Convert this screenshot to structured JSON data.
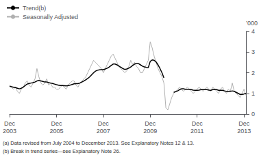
{
  "chart_data": {
    "type": "line",
    "ylabel": "’000",
    "annotations": [
      "(a) Data revised from July 2004 to December 2013. See Explanatory Notes 12 & 13.",
      "(b) Break in trend series—see Explanatory Note 26."
    ],
    "categories": [
      "Dec\n2003",
      null,
      null,
      null,
      null,
      null,
      null,
      null,
      null,
      null,
      null,
      null,
      null,
      null,
      null,
      null,
      null,
      null,
      null,
      null,
      null,
      null,
      null,
      null,
      "Dec\n2005",
      null,
      null,
      null,
      null,
      null,
      null,
      null,
      null,
      null,
      null,
      null,
      null,
      null,
      null,
      null,
      null,
      null,
      null,
      null,
      null,
      null,
      null,
      null,
      "Dec\n2007",
      null,
      null,
      null,
      null,
      null,
      null,
      null,
      null,
      null,
      null,
      null,
      null,
      null,
      null,
      null,
      null,
      null,
      null,
      null,
      null,
      null,
      null,
      null,
      "Dec\n2009",
      null,
      null,
      null,
      null,
      null,
      null,
      null,
      null,
      null,
      null,
      null,
      null,
      null,
      null,
      null,
      null,
      null,
      null,
      null,
      null,
      null,
      null,
      null,
      "Dec\n2011",
      null,
      null,
      null,
      null,
      null,
      null,
      null,
      null,
      null,
      null,
      null,
      null,
      null,
      null,
      null,
      null,
      null,
      null,
      null,
      null,
      null,
      null,
      null,
      "Dec\n2013",
      null
    ],
    "series": [
      {
        "name": "Trend(b)",
        "color": "#000000",
        "values": [
          1.35,
          1.32,
          1.3,
          1.28,
          1.25,
          1.22,
          1.25,
          1.3,
          1.38,
          1.45,
          1.48,
          1.5,
          1.52,
          1.55,
          1.6,
          1.62,
          1.6,
          1.58,
          1.55,
          1.55,
          1.52,
          1.5,
          1.48,
          1.45,
          1.42,
          1.4,
          1.38,
          1.38,
          1.37,
          1.36,
          1.38,
          1.4,
          1.43,
          1.46,
          1.47,
          1.47,
          1.5,
          1.55,
          1.6,
          1.66,
          1.72,
          1.8,
          1.9,
          2.0,
          2.08,
          2.12,
          2.14,
          2.15,
          2.15,
          2.18,
          2.22,
          2.28,
          2.35,
          2.42,
          2.42,
          2.38,
          2.32,
          2.26,
          2.2,
          2.16,
          2.18,
          2.22,
          2.28,
          2.35,
          2.42,
          2.45,
          2.44,
          2.38,
          2.32,
          2.28,
          2.26,
          2.25,
          2.55,
          2.62,
          2.6,
          2.52,
          2.38,
          2.2,
          2.0,
          1.75,
          null,
          null,
          null,
          null,
          1.05,
          1.08,
          1.12,
          1.18,
          1.22,
          1.22,
          1.2,
          1.2,
          1.2,
          1.18,
          1.16,
          1.15,
          1.15,
          1.16,
          1.18,
          1.18,
          1.18,
          1.18,
          1.16,
          1.15,
          1.18,
          1.2,
          1.18,
          1.15,
          1.15,
          1.15,
          1.12,
          1.1,
          1.1,
          1.1,
          1.12,
          1.1,
          1.05,
          1.0,
          0.95,
          0.95,
          0.97,
          1.0
        ]
      },
      {
        "name": "Seasonally Adjusted",
        "color": "#b0b0b0",
        "values": [
          1.4,
          1.3,
          1.2,
          1.3,
          1.1,
          1.0,
          1.2,
          1.3,
          1.5,
          1.6,
          1.4,
          1.3,
          1.5,
          1.7,
          2.2,
          1.8,
          1.5,
          1.4,
          1.5,
          1.7,
          1.4,
          1.5,
          1.3,
          1.3,
          1.2,
          1.2,
          1.3,
          1.4,
          1.3,
          1.2,
          1.4,
          1.5,
          1.6,
          1.6,
          1.4,
          1.3,
          1.5,
          1.6,
          1.7,
          1.8,
          2.0,
          2.2,
          2.4,
          2.6,
          2.5,
          2.4,
          2.3,
          2.2,
          2.0,
          2.2,
          2.4,
          2.6,
          2.8,
          2.9,
          2.7,
          2.5,
          2.3,
          2.2,
          2.1,
          2.0,
          2.1,
          2.3,
          2.6,
          2.4,
          2.5,
          2.3,
          2.2,
          2.0,
          2.0,
          2.2,
          2.4,
          2.6,
          3.5,
          3.2,
          2.8,
          2.5,
          2.2,
          2.0,
          1.8,
          1.5,
          0.3,
          0.2,
          0.5,
          0.8,
          1.0,
          1.1,
          1.2,
          1.3,
          1.2,
          1.1,
          1.2,
          1.3,
          1.2,
          1.1,
          1.0,
          1.1,
          1.2,
          1.3,
          1.2,
          1.1,
          1.2,
          1.3,
          1.2,
          1.1,
          1.3,
          1.2,
          1.1,
          1.0,
          1.2,
          1.3,
          1.1,
          1.0,
          1.2,
          1.1,
          1.5,
          1.1,
          1.0,
          0.9,
          0.8,
          1.0,
          1.2,
          0.9
        ]
      }
    ],
    "ylim": [
      0,
      4
    ],
    "yticks": [
      0,
      1,
      2,
      3,
      4
    ],
    "grid": false,
    "legend": "upper left"
  }
}
